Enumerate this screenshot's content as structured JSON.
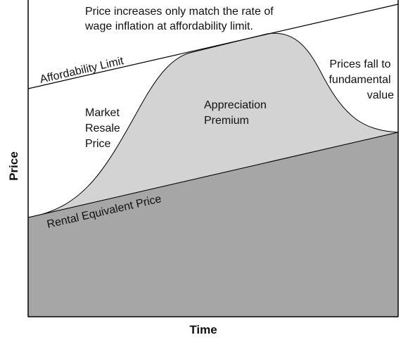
{
  "axes": {
    "x_label": "Time",
    "y_label": "Price"
  },
  "annotations": {
    "top_note": [
      "Price increases only match the rate of",
      "wage inflation at affordability limit."
    ],
    "affordability_limit": "Affordability Limit",
    "market_resale_price": [
      "Market",
      "Resale",
      "Price"
    ],
    "appreciation_premium": [
      "Appreciation",
      "Premium"
    ],
    "prices_fall": [
      "Prices fall to",
      "fundamental",
      "value"
    ],
    "rental_equivalent_price": "Rental Equivalent Price"
  },
  "colors": {
    "appreciation_premium_fill": "#d3d3d3",
    "rental_equivalent_fill": "#a6a6a6",
    "line": "#000000"
  }
}
